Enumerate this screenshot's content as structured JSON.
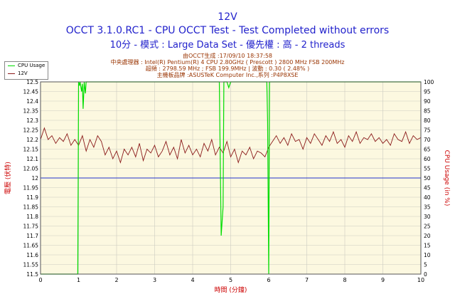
{
  "header": {
    "title": "12V",
    "subtitle": "OCCT 3.1.0.RC1 - CPU OCCT Test - Test Completed without errors",
    "subtitle2": "10分 - 模式 : Large Data Set - 優先權 : 高 - 2 threads"
  },
  "info": {
    "line1": "由OCCT生成 :17/09/10 18:37:58",
    "line2": "中央處理器 : Intel(R) Pentium(R) 4 CPU 2.80GHz ( Prescott ) 2800 MHz FSB 200MHz",
    "line3": "超頻 : 2798.59 MHz ; FSB 199.9MHz | 波動 : 0.30 ( 2.48% )",
    "line4": "主機板品牌 :ASUSTeK Computer Inc.,系列 :P4P8XSE"
  },
  "legend": {
    "cpu_label": "CPU Usage",
    "v12_label": "12V"
  },
  "colors": {
    "title": "#2222cc",
    "info": "#993300",
    "plot_bg": "#fcf8e0",
    "grid": "#cbcbc0",
    "voltage_line": "#8b1a1a",
    "cpu_line": "#00dd00",
    "ref_line": "#2233cc",
    "axis_label": "#cc0000"
  },
  "chart_data": {
    "type": "line",
    "title": "12V",
    "xlabel": "時間 (分鐘)",
    "ylabel": "電壓 (伏特)",
    "y2label": "CPU Usage (in %)",
    "xlim": [
      0,
      10
    ],
    "ylim": [
      11.5,
      12.5
    ],
    "y2lim": [
      0,
      100
    ],
    "x_ticks": [
      "0",
      "1",
      "2",
      "3",
      "4",
      "5",
      "6",
      "7",
      "8",
      "9",
      "10"
    ],
    "y_ticks": [
      "11.5",
      "11.55",
      "11.6",
      "11.65",
      "11.7",
      "11.75",
      "11.8",
      "11.85",
      "11.9",
      "11.95",
      "12",
      "12.05",
      "12.1",
      "12.15",
      "12.2",
      "12.25",
      "12.3",
      "12.35",
      "12.4",
      "12.45",
      "12.5"
    ],
    "y2_ticks": [
      "0",
      "5",
      "10",
      "15",
      "20",
      "25",
      "30",
      "35",
      "40",
      "45",
      "50",
      "55",
      "60",
      "65",
      "70",
      "75",
      "80",
      "85",
      "90",
      "95",
      "100"
    ],
    "reference_line": 12.0,
    "series": [
      {
        "name": "12V",
        "axis": "left",
        "x": [
          0,
          0.1,
          0.2,
          0.3,
          0.4,
          0.5,
          0.6,
          0.7,
          0.8,
          0.9,
          1.0,
          1.1,
          1.2,
          1.3,
          1.4,
          1.5,
          1.6,
          1.7,
          1.8,
          1.9,
          2.0,
          2.1,
          2.2,
          2.3,
          2.4,
          2.5,
          2.6,
          2.7,
          2.8,
          2.9,
          3.0,
          3.1,
          3.2,
          3.3,
          3.4,
          3.5,
          3.6,
          3.7,
          3.8,
          3.9,
          4.0,
          4.1,
          4.2,
          4.3,
          4.4,
          4.5,
          4.6,
          4.7,
          4.8,
          4.9,
          5.0,
          5.1,
          5.2,
          5.3,
          5.4,
          5.5,
          5.6,
          5.7,
          5.8,
          5.9,
          6.0,
          6.1,
          6.2,
          6.3,
          6.4,
          6.5,
          6.6,
          6.7,
          6.8,
          6.9,
          7.0,
          7.1,
          7.2,
          7.3,
          7.4,
          7.5,
          7.6,
          7.7,
          7.8,
          7.9,
          8.0,
          8.1,
          8.2,
          8.3,
          8.4,
          8.5,
          8.6,
          8.7,
          8.8,
          8.9,
          9.0,
          9.1,
          9.2,
          9.3,
          9.4,
          9.5,
          9.6,
          9.7,
          9.8,
          9.9,
          10.0
        ],
        "values": [
          12.2,
          12.26,
          12.2,
          12.22,
          12.18,
          12.21,
          12.19,
          12.23,
          12.17,
          12.2,
          12.17,
          12.22,
          12.14,
          12.2,
          12.16,
          12.22,
          12.19,
          12.12,
          12.16,
          12.1,
          12.14,
          12.08,
          12.15,
          12.12,
          12.16,
          12.11,
          12.18,
          12.09,
          12.15,
          12.13,
          12.17,
          12.11,
          12.14,
          12.19,
          12.12,
          12.16,
          12.1,
          12.2,
          12.13,
          12.17,
          12.12,
          12.15,
          12.11,
          12.18,
          12.14,
          12.2,
          12.12,
          12.16,
          12.13,
          12.19,
          12.11,
          12.15,
          12.08,
          12.14,
          12.12,
          12.16,
          12.1,
          12.14,
          12.13,
          12.11,
          12.16,
          12.19,
          12.22,
          12.18,
          12.21,
          12.17,
          12.23,
          12.19,
          12.2,
          12.15,
          12.21,
          12.18,
          12.23,
          12.2,
          12.17,
          12.22,
          12.19,
          12.24,
          12.18,
          12.2,
          12.16,
          12.22,
          12.19,
          12.24,
          12.18,
          12.21,
          12.2,
          12.23,
          12.19,
          12.21,
          12.18,
          12.2,
          12.17,
          12.23,
          12.2,
          12.19,
          12.24,
          12.18,
          12.22,
          12.2,
          12.21
        ]
      },
      {
        "name": "CPU Usage",
        "axis": "right",
        "x": [
          0,
          0.98,
          0.99,
          1.0,
          1.02,
          1.04,
          1.08,
          1.1,
          1.12,
          1.15,
          1.18,
          1.2,
          1.3,
          4.6,
          4.7,
          4.75,
          4.8,
          4.82,
          4.85,
          4.9,
          4.95,
          5.0,
          5.5,
          5.95,
          5.97,
          6.0,
          6.02,
          6.05,
          6.5,
          10.0
        ],
        "values": [
          0,
          0,
          50,
          100,
          98,
          100,
          95,
          99,
          86,
          100,
          94,
          100,
          100,
          100,
          100,
          20,
          35,
          100,
          100,
          100,
          97,
          100,
          100,
          100,
          80,
          0,
          100,
          100,
          100,
          100
        ]
      }
    ]
  }
}
